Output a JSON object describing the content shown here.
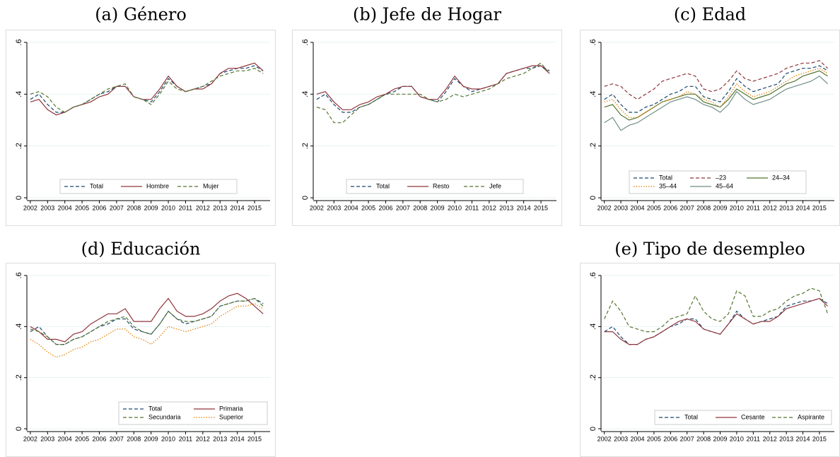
{
  "chart_data": [
    {
      "type": "line",
      "title": "(a) Género",
      "legend_loc": "lower center",
      "x": [
        2002,
        2002.5,
        2003,
        2003.5,
        2004,
        2004.5,
        2005,
        2005.5,
        2006,
        2006.5,
        2007,
        2007.5,
        2008,
        2008.5,
        2009,
        2009.5,
        2010,
        2010.5,
        2011,
        2011.5,
        2012,
        2012.5,
        2013,
        2013.5,
        2014,
        2014.5,
        2015,
        2015.5
      ],
      "xlim": [
        2001.8,
        2015.9
      ],
      "xticks": [
        2002,
        2003,
        2004,
        2005,
        2006,
        2007,
        2008,
        2009,
        2010,
        2011,
        2012,
        2013,
        2014,
        2015
      ],
      "ylim": [
        0,
        0.6
      ],
      "yticks": [
        0,
        {
          "value": 0.2,
          "label": ".2"
        },
        {
          "value": 0.4,
          "label": ".4"
        },
        {
          "value": 0.6,
          "label": ".6"
        }
      ],
      "grid": true,
      "series": [
        {
          "name": "Total",
          "color": "#1a476f",
          "style": "dashed",
          "values": [
            0.38,
            0.4,
            0.36,
            0.33,
            0.33,
            0.35,
            0.36,
            0.38,
            0.4,
            0.41,
            0.43,
            0.43,
            0.39,
            0.38,
            0.37,
            0.41,
            0.46,
            0.43,
            0.41,
            0.42,
            0.43,
            0.44,
            0.48,
            0.49,
            0.5,
            0.5,
            0.51,
            0.49
          ]
        },
        {
          "name": "Hombre",
          "color": "#90353b",
          "style": "solid",
          "values": [
            0.37,
            0.38,
            0.34,
            0.32,
            0.33,
            0.35,
            0.36,
            0.37,
            0.39,
            0.4,
            0.43,
            0.43,
            0.39,
            0.38,
            0.38,
            0.42,
            0.47,
            0.43,
            0.41,
            0.42,
            0.42,
            0.44,
            0.48,
            0.5,
            0.5,
            0.51,
            0.52,
            0.49
          ]
        },
        {
          "name": "Mujer",
          "color": "#55752f",
          "style": "dashed",
          "values": [
            0.4,
            0.41,
            0.39,
            0.35,
            0.33,
            0.35,
            0.36,
            0.38,
            0.4,
            0.42,
            0.43,
            0.44,
            0.39,
            0.38,
            0.36,
            0.4,
            0.45,
            0.42,
            0.41,
            0.42,
            0.43,
            0.45,
            0.47,
            0.48,
            0.49,
            0.49,
            0.5,
            0.48
          ]
        }
      ]
    },
    {
      "type": "line",
      "title": "(b) Jefe de Hogar",
      "legend_loc": "lower center",
      "x": [
        2002,
        2002.5,
        2003,
        2003.5,
        2004,
        2004.5,
        2005,
        2005.5,
        2006,
        2006.5,
        2007,
        2007.5,
        2008,
        2008.5,
        2009,
        2009.5,
        2010,
        2010.5,
        2011,
        2011.5,
        2012,
        2012.5,
        2013,
        2013.5,
        2014,
        2014.5,
        2015,
        2015.5
      ],
      "xlim": [
        2001.8,
        2015.9
      ],
      "xticks": [
        2002,
        2003,
        2004,
        2005,
        2006,
        2007,
        2008,
        2009,
        2010,
        2011,
        2012,
        2013,
        2014,
        2015
      ],
      "ylim": [
        0,
        0.6
      ],
      "yticks": [
        0,
        {
          "value": 0.2,
          "label": ".2"
        },
        {
          "value": 0.4,
          "label": ".4"
        },
        {
          "value": 0.6,
          "label": ".6"
        }
      ],
      "grid": true,
      "series": [
        {
          "name": "Total",
          "color": "#1a476f",
          "style": "dashed",
          "values": [
            0.38,
            0.4,
            0.36,
            0.33,
            0.33,
            0.35,
            0.36,
            0.38,
            0.4,
            0.41,
            0.43,
            0.43,
            0.39,
            0.38,
            0.37,
            0.41,
            0.46,
            0.43,
            0.41,
            0.42,
            0.43,
            0.44,
            0.48,
            0.49,
            0.5,
            0.5,
            0.51,
            0.49
          ]
        },
        {
          "name": "Resto",
          "color": "#90353b",
          "style": "solid",
          "values": [
            0.4,
            0.41,
            0.37,
            0.34,
            0.34,
            0.36,
            0.37,
            0.39,
            0.4,
            0.42,
            0.43,
            0.43,
            0.39,
            0.38,
            0.38,
            0.42,
            0.47,
            0.43,
            0.42,
            0.42,
            0.43,
            0.44,
            0.48,
            0.49,
            0.5,
            0.51,
            0.51,
            0.48
          ]
        },
        {
          "name": "Jefe",
          "color": "#55752f",
          "style": "dashed",
          "values": [
            0.35,
            0.34,
            0.29,
            0.29,
            0.32,
            0.35,
            0.36,
            0.38,
            0.4,
            0.4,
            0.4,
            0.4,
            0.4,
            0.38,
            0.37,
            0.38,
            0.4,
            0.39,
            0.4,
            0.41,
            0.42,
            0.44,
            0.46,
            0.47,
            0.48,
            0.5,
            0.52,
            0.48
          ]
        }
      ]
    },
    {
      "type": "line",
      "title": "(c) Edad",
      "legend_loc": "lower center",
      "x": [
        2002,
        2002.5,
        2003,
        2003.5,
        2004,
        2004.5,
        2005,
        2005.5,
        2006,
        2006.5,
        2007,
        2007.5,
        2008,
        2008.5,
        2009,
        2009.5,
        2010,
        2010.5,
        2011,
        2011.5,
        2012,
        2012.5,
        2013,
        2013.5,
        2014,
        2014.5,
        2015,
        2015.5
      ],
      "xlim": [
        2001.8,
        2015.9
      ],
      "xticks": [
        2002,
        2003,
        2004,
        2005,
        2006,
        2007,
        2008,
        2009,
        2010,
        2011,
        2012,
        2013,
        2014,
        2015
      ],
      "ylim": [
        0,
        0.6
      ],
      "yticks": [
        0,
        {
          "value": 0.2,
          "label": ".2"
        },
        {
          "value": 0.4,
          "label": ".4"
        },
        {
          "value": 0.6,
          "label": ".6"
        }
      ],
      "grid": true,
      "series": [
        {
          "name": "Total",
          "color": "#1a476f",
          "style": "dashed",
          "values": [
            0.38,
            0.4,
            0.36,
            0.33,
            0.33,
            0.35,
            0.36,
            0.38,
            0.4,
            0.41,
            0.43,
            0.43,
            0.39,
            0.38,
            0.37,
            0.41,
            0.46,
            0.43,
            0.41,
            0.42,
            0.43,
            0.44,
            0.48,
            0.49,
            0.5,
            0.5,
            0.51,
            0.49
          ]
        },
        {
          "name": "–23",
          "color": "#90353b",
          "style": "dashed",
          "values": [
            0.43,
            0.44,
            0.43,
            0.4,
            0.38,
            0.4,
            0.42,
            0.45,
            0.46,
            0.47,
            0.48,
            0.47,
            0.42,
            0.41,
            0.42,
            0.45,
            0.49,
            0.46,
            0.45,
            0.46,
            0.47,
            0.48,
            0.5,
            0.51,
            0.52,
            0.52,
            0.53,
            0.5
          ]
        },
        {
          "name": "24–34",
          "color": "#55752f",
          "style": "solid",
          "values": [
            0.35,
            0.36,
            0.32,
            0.3,
            0.31,
            0.33,
            0.35,
            0.37,
            0.38,
            0.39,
            0.4,
            0.4,
            0.37,
            0.36,
            0.35,
            0.38,
            0.42,
            0.4,
            0.38,
            0.39,
            0.4,
            0.42,
            0.44,
            0.45,
            0.47,
            0.48,
            0.49,
            0.47
          ]
        },
        {
          "name": "35–44",
          "color": "#e37e00",
          "style": "dotted",
          "values": [
            0.37,
            0.38,
            0.34,
            0.31,
            0.31,
            0.33,
            0.35,
            0.37,
            0.38,
            0.39,
            0.41,
            0.4,
            0.38,
            0.37,
            0.35,
            0.39,
            0.44,
            0.41,
            0.39,
            0.4,
            0.41,
            0.43,
            0.45,
            0.47,
            0.48,
            0.49,
            0.5,
            0.48
          ]
        },
        {
          "name": "45–64",
          "color": "#6e8e84",
          "style": "solid",
          "values": [
            0.29,
            0.31,
            0.26,
            0.28,
            0.29,
            0.31,
            0.33,
            0.35,
            0.37,
            0.38,
            0.39,
            0.38,
            0.36,
            0.35,
            0.33,
            0.36,
            0.41,
            0.38,
            0.36,
            0.37,
            0.38,
            0.4,
            0.42,
            0.43,
            0.44,
            0.45,
            0.47,
            0.44
          ]
        }
      ]
    },
    {
      "type": "line",
      "title": "(d) Educación",
      "legend_loc": "lower right",
      "x": [
        2002,
        2002.5,
        2003,
        2003.5,
        2004,
        2004.5,
        2005,
        2005.5,
        2006,
        2006.5,
        2007,
        2007.5,
        2008,
        2008.5,
        2009,
        2009.5,
        2010,
        2010.5,
        2011,
        2011.5,
        2012,
        2012.5,
        2013,
        2013.5,
        2014,
        2014.5,
        2015,
        2015.5
      ],
      "xlim": [
        2001.8,
        2015.9
      ],
      "xticks": [
        2002,
        2003,
        2004,
        2005,
        2006,
        2007,
        2008,
        2009,
        2010,
        2011,
        2012,
        2013,
        2014,
        2015
      ],
      "ylim": [
        0,
        0.6
      ],
      "yticks": [
        0,
        {
          "value": 0.2,
          "label": ".2"
        },
        {
          "value": 0.4,
          "label": ".4"
        },
        {
          "value": 0.6,
          "label": ".6"
        }
      ],
      "grid": true,
      "series": [
        {
          "name": "Total",
          "color": "#1a476f",
          "style": "dashed",
          "values": [
            0.38,
            0.4,
            0.36,
            0.33,
            0.33,
            0.35,
            0.36,
            0.38,
            0.4,
            0.41,
            0.43,
            0.43,
            0.39,
            0.38,
            0.37,
            0.41,
            0.46,
            0.43,
            0.41,
            0.42,
            0.43,
            0.44,
            0.48,
            0.49,
            0.5,
            0.5,
            0.51,
            0.49
          ]
        },
        {
          "name": "Primaria",
          "color": "#90353b",
          "style": "solid",
          "values": [
            0.4,
            0.38,
            0.35,
            0.35,
            0.34,
            0.37,
            0.38,
            0.41,
            0.43,
            0.45,
            0.45,
            0.47,
            0.42,
            0.42,
            0.42,
            0.47,
            0.51,
            0.46,
            0.44,
            0.44,
            0.45,
            0.47,
            0.5,
            0.52,
            0.53,
            0.51,
            0.48,
            0.45
          ]
        },
        {
          "name": "Secundaria",
          "color": "#55752f",
          "style": "dashed",
          "values": [
            0.39,
            0.38,
            0.36,
            0.33,
            0.33,
            0.35,
            0.36,
            0.38,
            0.4,
            0.42,
            0.43,
            0.44,
            0.4,
            0.38,
            0.37,
            0.41,
            0.46,
            0.43,
            0.42,
            0.42,
            0.43,
            0.44,
            0.48,
            0.49,
            0.5,
            0.5,
            0.51,
            0.48
          ]
        },
        {
          "name": "Superior",
          "color": "#e37e00",
          "style": "dotted",
          "values": [
            0.35,
            0.33,
            0.3,
            0.28,
            0.29,
            0.31,
            0.32,
            0.34,
            0.35,
            0.37,
            0.39,
            0.39,
            0.36,
            0.35,
            0.33,
            0.36,
            0.4,
            0.39,
            0.38,
            0.39,
            0.4,
            0.41,
            0.44,
            0.46,
            0.48,
            0.48,
            0.49,
            0.47
          ]
        }
      ]
    },
    {
      "type": "line",
      "title": "(e) Tipo de desempleo",
      "legend_loc": "lower right",
      "x": [
        2002,
        2002.5,
        2003,
        2003.5,
        2004,
        2004.5,
        2005,
        2005.5,
        2006,
        2006.5,
        2007,
        2007.5,
        2008,
        2008.5,
        2009,
        2009.5,
        2010,
        2010.5,
        2011,
        2011.5,
        2012,
        2012.5,
        2013,
        2013.5,
        2014,
        2014.5,
        2015,
        2015.5
      ],
      "xlim": [
        2001.8,
        2015.9
      ],
      "xticks": [
        2002,
        2003,
        2004,
        2005,
        2006,
        2007,
        2008,
        2009,
        2010,
        2011,
        2012,
        2013,
        2014,
        2015
      ],
      "ylim": [
        0,
        0.6
      ],
      "yticks": [
        0,
        {
          "value": 0.2,
          "label": ".2"
        },
        {
          "value": 0.4,
          "label": ".4"
        },
        {
          "value": 0.6,
          "label": ".6"
        }
      ],
      "grid": true,
      "series": [
        {
          "name": "Total",
          "color": "#1a476f",
          "style": "dashed",
          "values": [
            0.38,
            0.4,
            0.36,
            0.33,
            0.33,
            0.35,
            0.36,
            0.38,
            0.4,
            0.41,
            0.43,
            0.43,
            0.39,
            0.38,
            0.37,
            0.41,
            0.46,
            0.43,
            0.41,
            0.42,
            0.43,
            0.44,
            0.48,
            0.49,
            0.5,
            0.5,
            0.51,
            0.49
          ]
        },
        {
          "name": "Cesante",
          "color": "#90353b",
          "style": "solid",
          "values": [
            0.38,
            0.38,
            0.35,
            0.33,
            0.33,
            0.35,
            0.36,
            0.38,
            0.4,
            0.42,
            0.43,
            0.42,
            0.39,
            0.38,
            0.37,
            0.41,
            0.45,
            0.43,
            0.41,
            0.42,
            0.42,
            0.44,
            0.47,
            0.48,
            0.49,
            0.5,
            0.51,
            0.48
          ]
        },
        {
          "name": "Aspirante",
          "color": "#55752f",
          "style": "dashed",
          "values": [
            0.43,
            0.5,
            0.46,
            0.4,
            0.39,
            0.38,
            0.38,
            0.4,
            0.43,
            0.44,
            0.45,
            0.52,
            0.46,
            0.43,
            0.42,
            0.45,
            0.54,
            0.52,
            0.44,
            0.44,
            0.46,
            0.47,
            0.5,
            0.52,
            0.53,
            0.55,
            0.54,
            0.45
          ]
        }
      ]
    }
  ]
}
